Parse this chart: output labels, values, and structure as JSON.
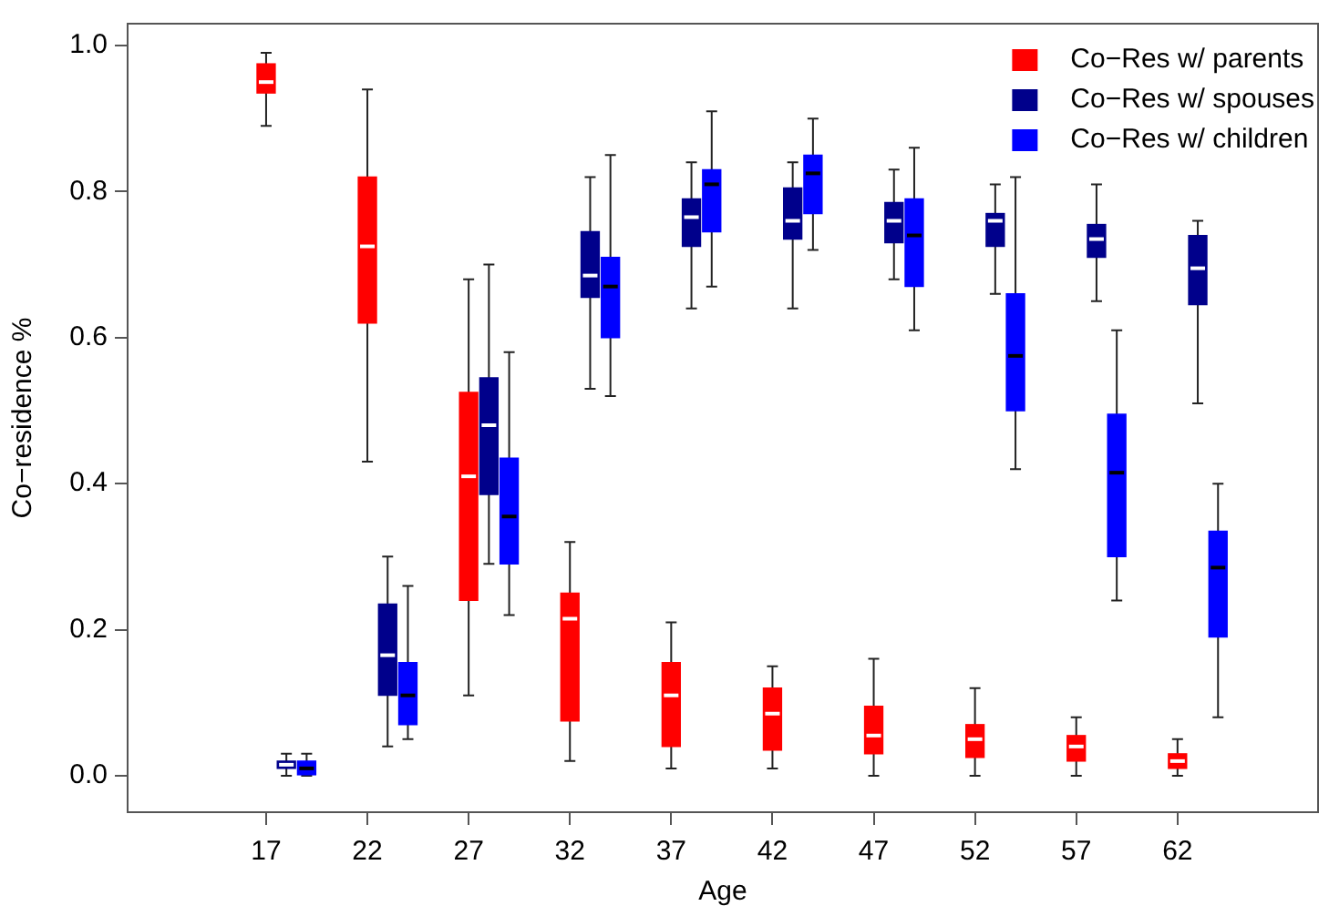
{
  "chart_data": {
    "type": "box",
    "xlabel": "Age",
    "ylabel": "Co−residence %",
    "categories": [
      "17",
      "22",
      "27",
      "32",
      "37",
      "42",
      "47",
      "52",
      "57",
      "62"
    ],
    "ylim": [
      -0.05,
      1.03
    ],
    "yticks": [
      {
        "value": 0,
        "label": "0.0"
      },
      {
        "value": 0.2,
        "label": "0.2"
      },
      {
        "value": 0.4,
        "label": "0.4"
      },
      {
        "value": 0.6,
        "label": "0.6"
      },
      {
        "value": 0.8,
        "label": "0.8"
      },
      {
        "value": 1,
        "label": "1.0"
      }
    ],
    "grid": false,
    "legend": "top right",
    "series": [
      {
        "name": "Co−Res w/ parents",
        "color": "#ff0000",
        "boxes": [
          {
            "low": 0.89,
            "q1": 0.935,
            "median": 0.95,
            "q3": 0.975,
            "high": 0.99
          },
          {
            "low": 0.43,
            "q1": 0.62,
            "median": 0.725,
            "q3": 0.82,
            "high": 0.94
          },
          {
            "low": 0.11,
            "q1": 0.24,
            "median": 0.41,
            "q3": 0.525,
            "high": 0.68
          },
          {
            "low": 0.02,
            "q1": 0.075,
            "median": 0.215,
            "q3": 0.25,
            "high": 0.32
          },
          {
            "low": 0.01,
            "q1": 0.04,
            "median": 0.11,
            "q3": 0.155,
            "high": 0.21
          },
          {
            "low": 0.01,
            "q1": 0.035,
            "median": 0.085,
            "q3": 0.12,
            "high": 0.15
          },
          {
            "low": 0,
            "q1": 0.03,
            "median": 0.055,
            "q3": 0.095,
            "high": 0.16
          },
          {
            "low": 0,
            "q1": 0.025,
            "median": 0.05,
            "q3": 0.07,
            "high": 0.12
          },
          {
            "low": 0,
            "q1": 0.02,
            "median": 0.04,
            "q3": 0.055,
            "high": 0.08
          },
          {
            "low": 0,
            "q1": 0.01,
            "median": 0.02,
            "q3": 0.03,
            "high": 0.05
          }
        ]
      },
      {
        "name": "Co−Res w/ spouses",
        "color": "#00008b",
        "boxes": [
          {
            "low": 0,
            "q1": 0.01,
            "median": 0.015,
            "q3": 0.02,
            "high": 0.03
          },
          {
            "low": 0.04,
            "q1": 0.11,
            "median": 0.165,
            "q3": 0.235,
            "high": 0.3
          },
          {
            "low": 0.29,
            "q1": 0.385,
            "median": 0.48,
            "q3": 0.545,
            "high": 0.7
          },
          {
            "low": 0.53,
            "q1": 0.655,
            "median": 0.685,
            "q3": 0.745,
            "high": 0.82
          },
          {
            "low": 0.64,
            "q1": 0.725,
            "median": 0.765,
            "q3": 0.79,
            "high": 0.84
          },
          {
            "low": 0.64,
            "q1": 0.735,
            "median": 0.76,
            "q3": 0.805,
            "high": 0.84
          },
          {
            "low": 0.68,
            "q1": 0.73,
            "median": 0.76,
            "q3": 0.785,
            "high": 0.83
          },
          {
            "low": 0.66,
            "q1": 0.725,
            "median": 0.76,
            "q3": 0.77,
            "high": 0.81
          },
          {
            "low": 0.65,
            "q1": 0.71,
            "median": 0.735,
            "q3": 0.755,
            "high": 0.81
          },
          {
            "low": 0.51,
            "q1": 0.645,
            "median": 0.695,
            "q3": 0.74,
            "high": 0.76
          }
        ]
      },
      {
        "name": "Co−Res w/ children",
        "color": "#0000ff",
        "boxes": [
          {
            "low": 0,
            "q1": 0,
            "median": 0.01,
            "q3": 0.02,
            "high": 0.03
          },
          {
            "low": 0.05,
            "q1": 0.07,
            "median": 0.11,
            "q3": 0.155,
            "high": 0.26
          },
          {
            "low": 0.22,
            "q1": 0.29,
            "median": 0.355,
            "q3": 0.435,
            "high": 0.58
          },
          {
            "low": 0.52,
            "q1": 0.6,
            "median": 0.67,
            "q3": 0.71,
            "high": 0.85
          },
          {
            "low": 0.67,
            "q1": 0.745,
            "median": 0.81,
            "q3": 0.83,
            "high": 0.91
          },
          {
            "low": 0.72,
            "q1": 0.77,
            "median": 0.825,
            "q3": 0.85,
            "high": 0.9
          },
          {
            "low": 0.61,
            "q1": 0.67,
            "median": 0.74,
            "q3": 0.79,
            "high": 0.86
          },
          {
            "low": 0.42,
            "q1": 0.5,
            "median": 0.575,
            "q3": 0.66,
            "high": 0.82
          },
          {
            "low": 0.24,
            "q1": 0.3,
            "median": 0.415,
            "q3": 0.495,
            "high": 0.61
          },
          {
            "low": 0.08,
            "q1": 0.19,
            "median": 0.285,
            "q3": 0.335,
            "high": 0.4
          }
        ]
      }
    ]
  }
}
